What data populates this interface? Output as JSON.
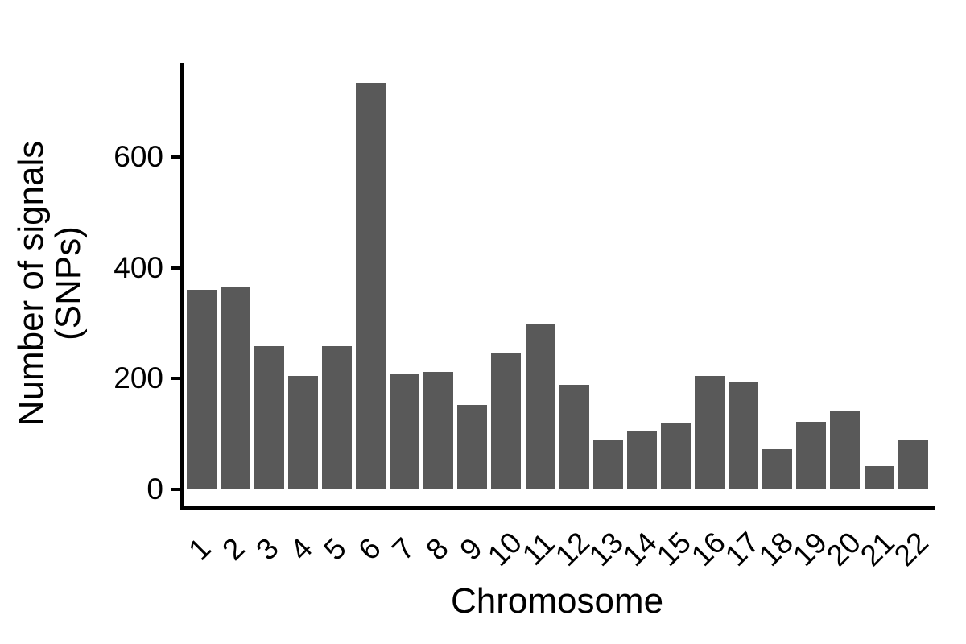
{
  "chart_data": {
    "type": "bar",
    "title": "",
    "xlabel": "Chromosome",
    "ylabel": "Number of signals (SNPs)",
    "ylabel_lines": [
      "Number of signals",
      "(SNPs)"
    ],
    "categories": [
      "1",
      "2",
      "3",
      "4",
      "5",
      "6",
      "7",
      "8",
      "9",
      "10",
      "11",
      "12",
      "13",
      "14",
      "15",
      "16",
      "17",
      "18",
      "19",
      "20",
      "21",
      "22"
    ],
    "values": [
      360,
      367,
      258,
      205,
      258,
      734,
      209,
      212,
      153,
      247,
      298,
      189,
      89,
      105,
      119,
      205,
      193,
      72,
      122,
      142,
      42,
      88
    ],
    "yticks": [
      0,
      200,
      400,
      600
    ],
    "ylim": [
      0,
      770
    ],
    "grid": false,
    "legend": false,
    "bar_color": "#595959",
    "axis_color": "#000000",
    "text_color": "#000000",
    "background": "#ffffff"
  }
}
